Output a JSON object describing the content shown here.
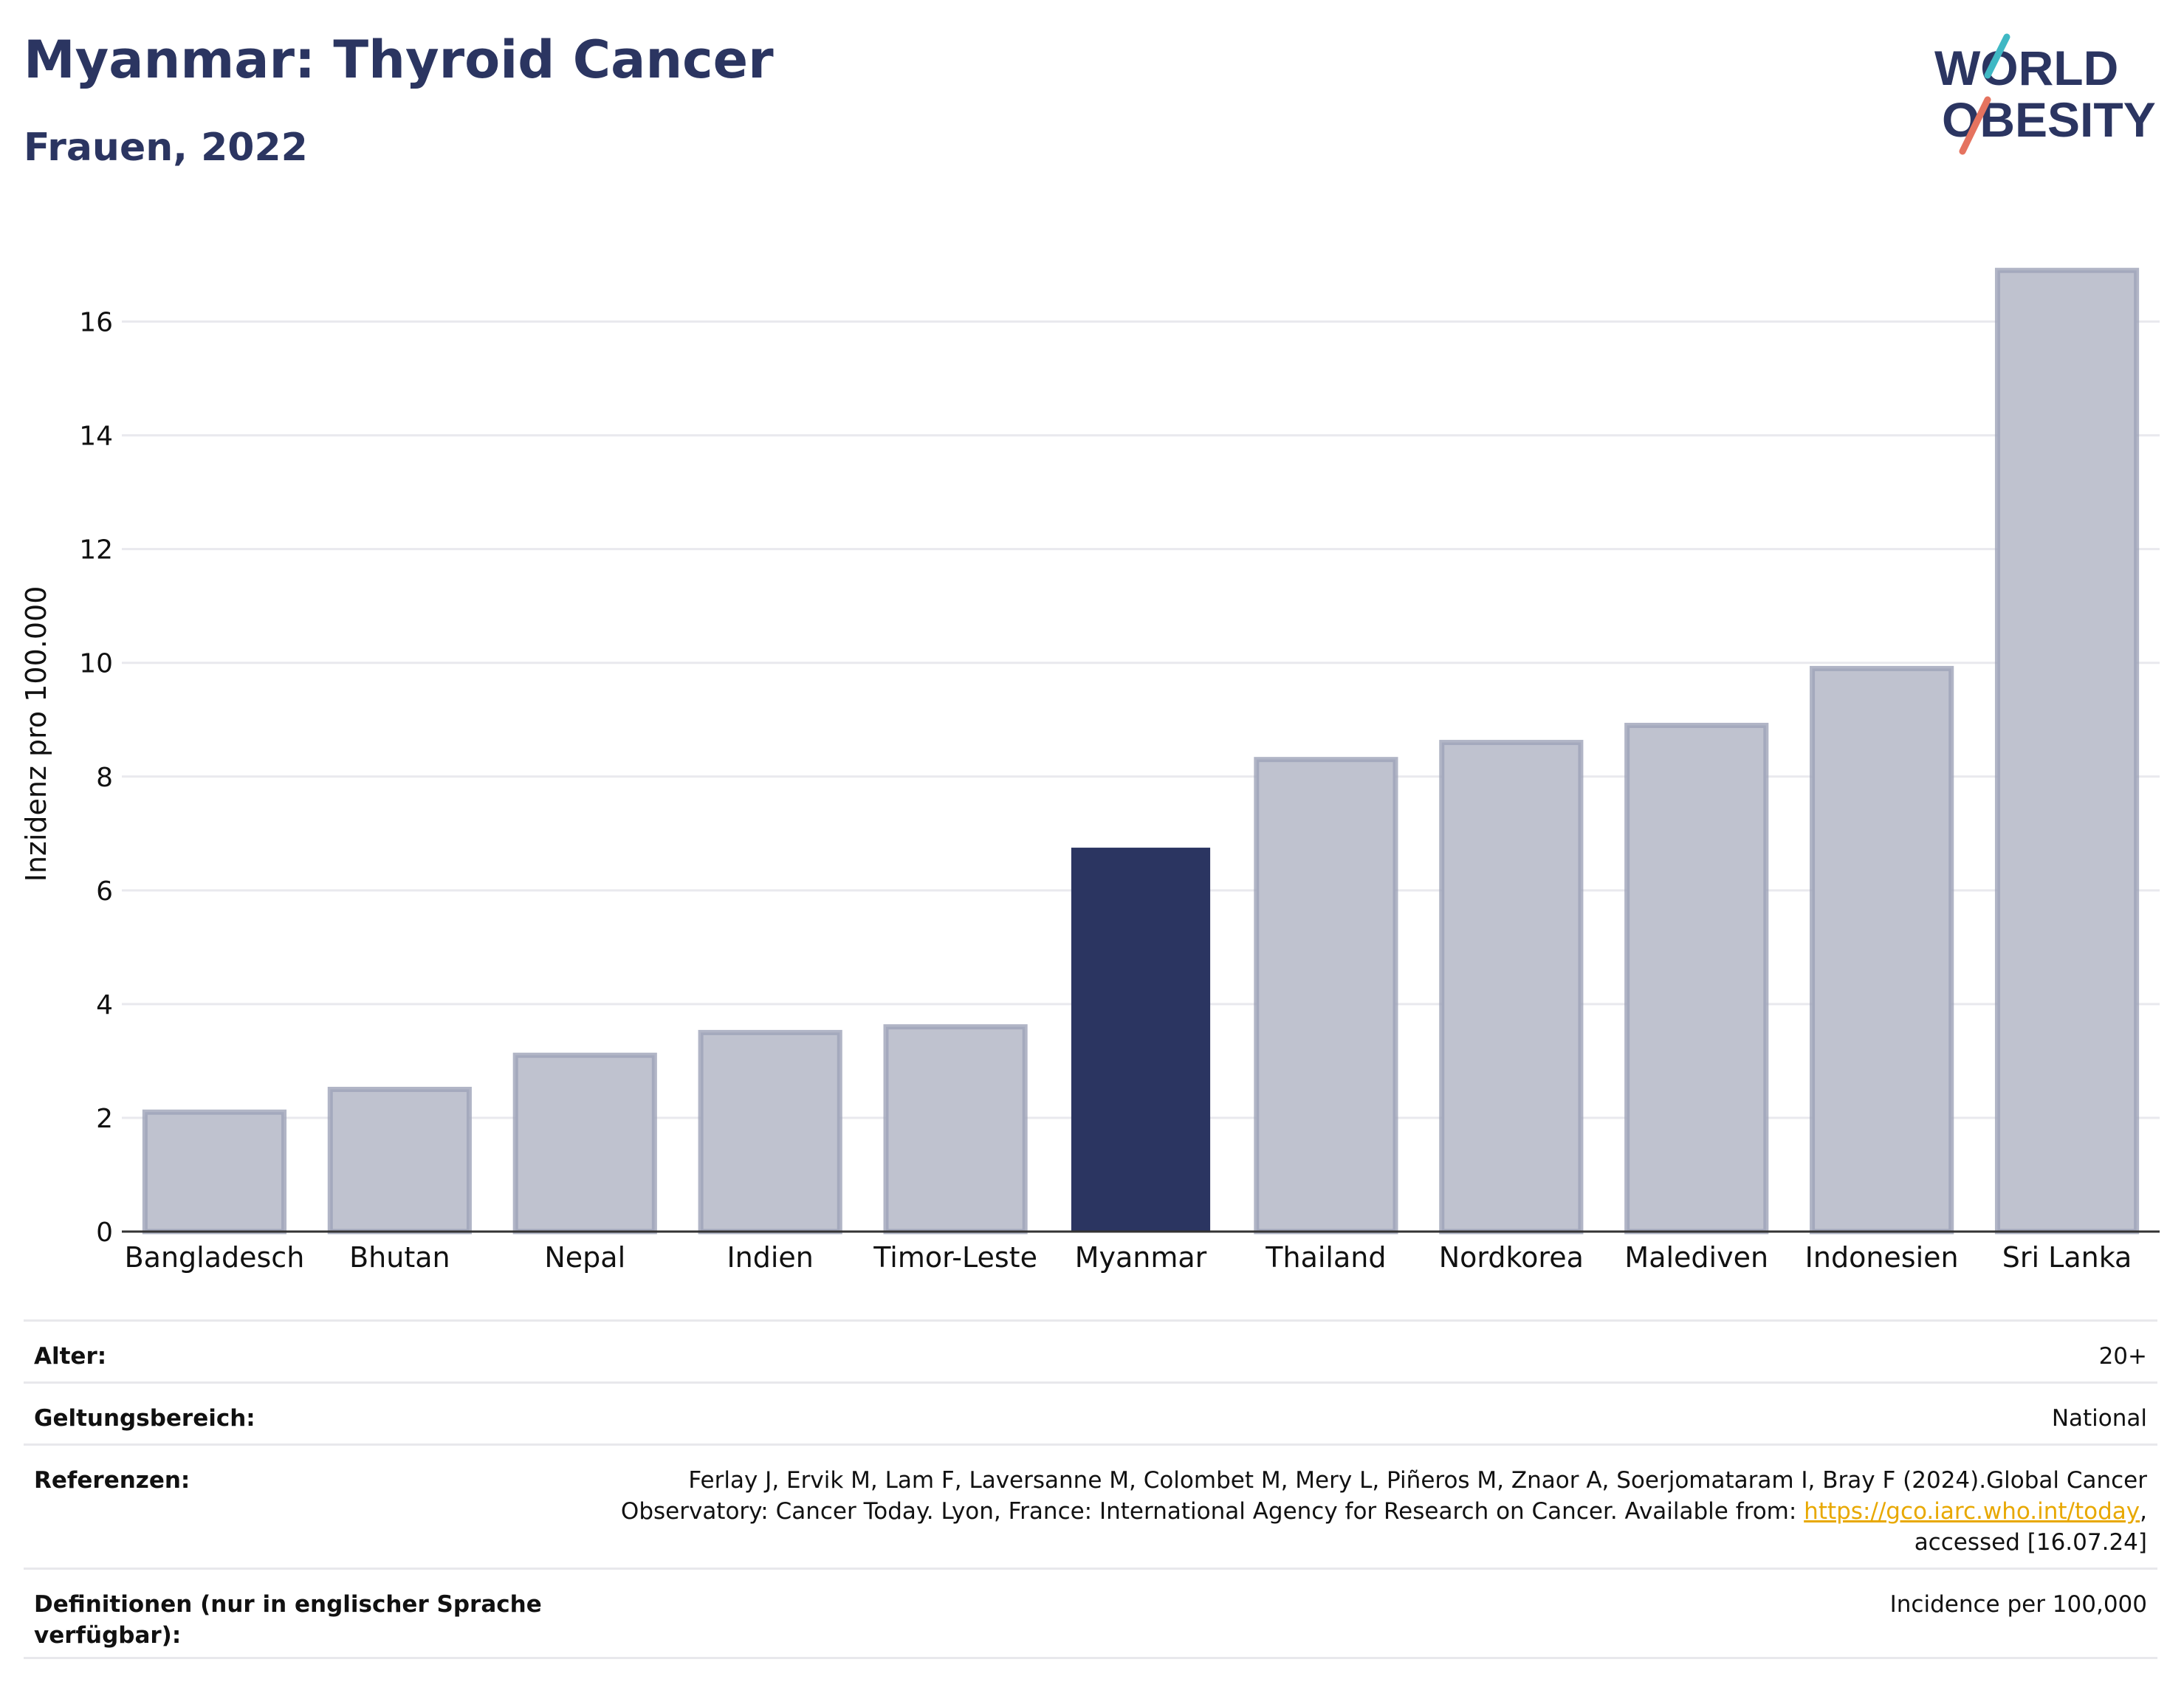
{
  "header": {
    "title": "Myanmar: Thyroid Cancer",
    "subtitle": "Frauen, 2022"
  },
  "logo": {
    "line1": "WORLD",
    "line2": "OBESITY",
    "accent_colors": [
      "#3fb8c4",
      "#e5735f"
    ]
  },
  "chart_data": {
    "type": "bar",
    "categories": [
      "Bangladesch",
      "Bhutan",
      "Nepal",
      "Indien",
      "Timor-Leste",
      "Myanmar",
      "Thailand",
      "Nordkorea",
      "Malediven",
      "Indonesien",
      "Sri Lanka"
    ],
    "values": [
      2.1,
      2.5,
      3.1,
      3.5,
      3.6,
      6.75,
      8.3,
      8.6,
      8.9,
      9.9,
      16.9
    ],
    "highlight": "Myanmar",
    "ylabel": "Inzidenz pro 100.000",
    "xlabel": "",
    "ylim": [
      0,
      17.5
    ],
    "yticks": [
      0,
      2,
      4,
      6,
      8,
      10,
      12,
      14,
      16
    ],
    "grid": true,
    "colors": {
      "bar": "#bfc2cf",
      "bar_border": "#9da2b8",
      "highlight": "#2b3561"
    }
  },
  "info": {
    "rows": [
      {
        "key": "Alter:",
        "value": "20+"
      },
      {
        "key": "Geltungsbereich:",
        "value": "National"
      },
      {
        "key": "Referenzen:",
        "value_pre": "Ferlay J, Ervik M, Lam F, Laversanne M, Colombet M, Mery L, Piñeros M, Znaor A, Soerjomataram I, Bray F (2024).Global Cancer Observatory: Cancer Today. Lyon, France: International Agency for Research on Cancer. Available from: ",
        "link": "https://gco.iarc.who.int/today",
        "value_post": ", accessed [16.07.24]"
      },
      {
        "key": "Definitionen (nur in englischer Sprache verfügbar):",
        "value": "Incidence per 100,000"
      }
    ]
  }
}
